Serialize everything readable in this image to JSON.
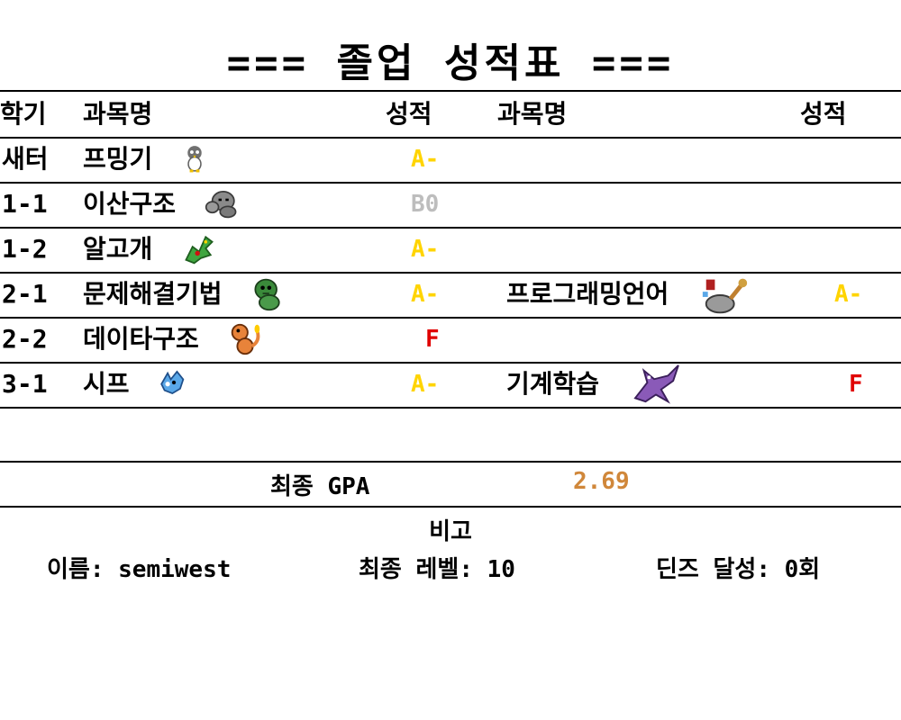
{
  "title": "=== 졸업 성적표 ===",
  "headers": {
    "semester": "학기",
    "course1": "과목명",
    "grade1": "성적",
    "course2": "과목명",
    "grade2": "성적"
  },
  "rows": [
    {
      "semester": "새터",
      "course1": "프밍기",
      "sprite1": "piplup-sprite-icon",
      "grade1": "A-",
      "grade1_color": "#ffd400",
      "course2": "",
      "sprite2": "",
      "grade2": "",
      "grade2_color": ""
    },
    {
      "semester": "1-1",
      "course1": "이산구조",
      "sprite1": "geodude-sprite-icon",
      "grade1": "B0",
      "grade1_color": "#bdbdbd",
      "course2": "",
      "sprite2": "",
      "grade2": "",
      "grade2_color": ""
    },
    {
      "semester": "1-2",
      "course1": "알고개",
      "sprite1": "rayquaza-sprite-icon",
      "grade1": "A-",
      "grade1_color": "#ffd400",
      "course2": "",
      "sprite2": "",
      "grade2": "",
      "grade2_color": ""
    },
    {
      "semester": "2-1",
      "course1": "문제해결기법",
      "sprite1": "bulbasaur-sprite-icon",
      "grade1": "A-",
      "grade1_color": "#ffd400",
      "course2": "프로그래밍언어",
      "sprite2": "rock-crab-sprite-icon",
      "grade2": "A-",
      "grade2_color": "#ffd400"
    },
    {
      "semester": "2-2",
      "course1": "데이타구조",
      "sprite1": "charmander-sprite-icon",
      "grade1": "F",
      "grade1_color": "#e00000",
      "course2": "",
      "sprite2": "",
      "grade2": "",
      "grade2_color": ""
    },
    {
      "semester": "3-1",
      "course1": "시프",
      "sprite1": "blue-fox-sprite-icon",
      "grade1": "A-",
      "grade1_color": "#ffd400",
      "course2": "기계학습",
      "sprite2": "purple-dragon-sprite-icon",
      "grade2": "F",
      "grade2_color": "#e00000"
    }
  ],
  "gpa": {
    "label": "최종 GPA",
    "value": "2.69",
    "value_color": "#d0873a"
  },
  "notes": {
    "heading": "비고",
    "name": "이름: semiwest",
    "level": "최종 레벨: 10",
    "dinz": "딘즈 달성: 0회"
  }
}
